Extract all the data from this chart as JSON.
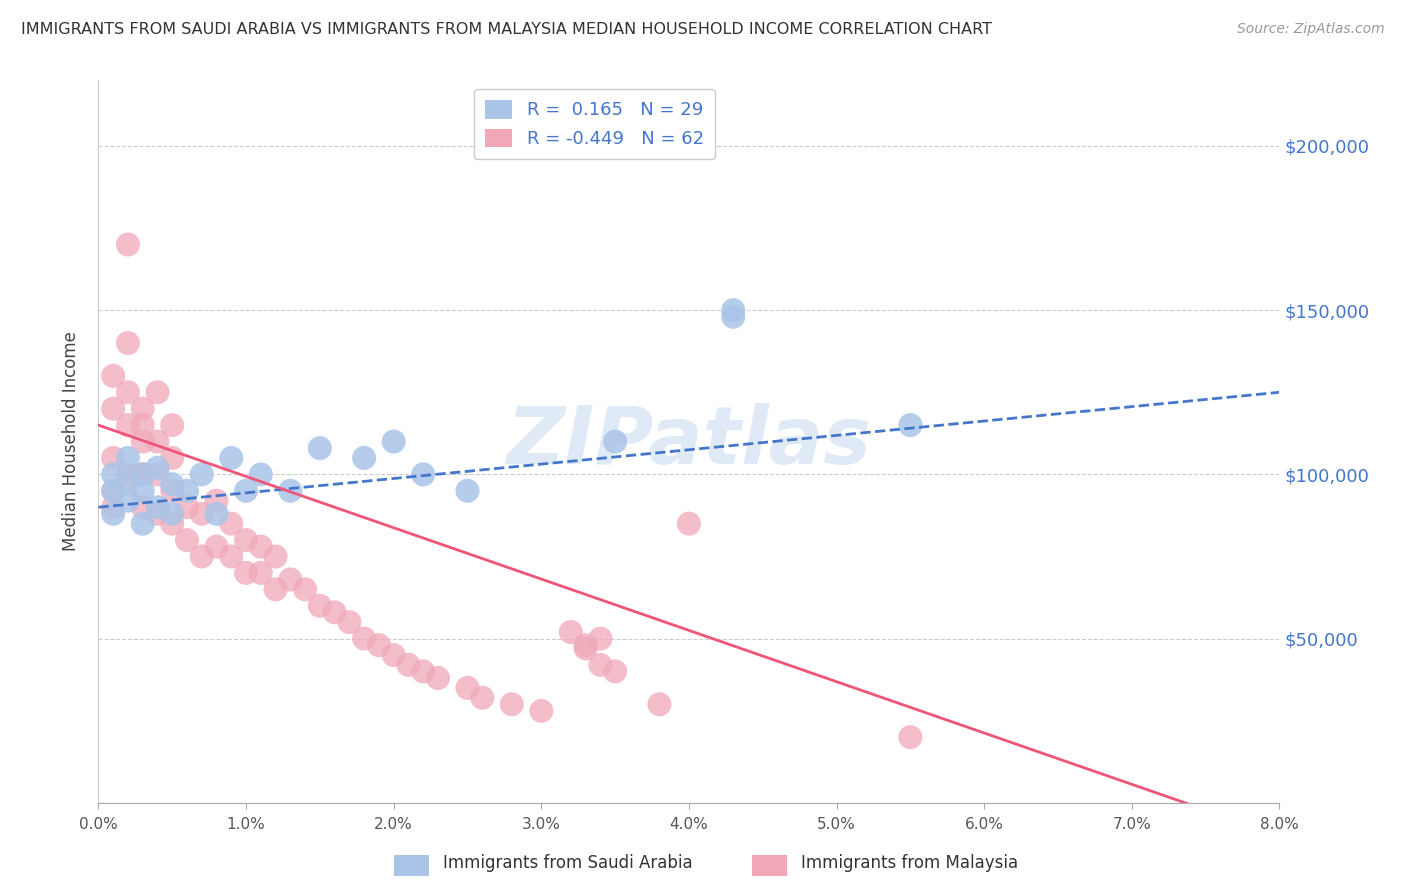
{
  "title": "IMMIGRANTS FROM SAUDI ARABIA VS IMMIGRANTS FROM MALAYSIA MEDIAN HOUSEHOLD INCOME CORRELATION CHART",
  "source": "Source: ZipAtlas.com",
  "ylabel": "Median Household Income",
  "xlim": [
    0.0,
    0.08
  ],
  "ylim": [
    0,
    220000
  ],
  "yticks": [
    0,
    50000,
    100000,
    150000,
    200000
  ],
  "ytick_labels": [
    "",
    "$50,000",
    "$100,000",
    "$150,000",
    "$200,000"
  ],
  "legend_r_saudi": "R =  0.165",
  "legend_n_saudi": "N = 29",
  "legend_r_malaysia": "R = -0.449",
  "legend_n_malaysia": "N = 62",
  "color_saudi": "#aac4e8",
  "color_malaysia": "#f0a8b8",
  "line_color_saudi": "#4477cc",
  "line_color_malaysia": "#ee5577",
  "watermark": "ZIPatlas",
  "saudi_x": [
    0.001,
    0.001,
    0.001,
    0.002,
    0.002,
    0.002,
    0.003,
    0.003,
    0.003,
    0.004,
    0.004,
    0.005,
    0.005,
    0.006,
    0.007,
    0.008,
    0.009,
    0.01,
    0.011,
    0.013,
    0.015,
    0.018,
    0.02,
    0.022,
    0.025,
    0.035,
    0.043,
    0.043,
    0.055
  ],
  "saudi_y": [
    95000,
    100000,
    88000,
    92000,
    98000,
    105000,
    85000,
    95000,
    100000,
    90000,
    102000,
    88000,
    97000,
    95000,
    100000,
    88000,
    105000,
    95000,
    100000,
    95000,
    108000,
    105000,
    110000,
    100000,
    95000,
    110000,
    150000,
    148000,
    115000
  ],
  "malaysia_x": [
    0.001,
    0.001,
    0.001,
    0.001,
    0.001,
    0.002,
    0.002,
    0.002,
    0.002,
    0.002,
    0.003,
    0.003,
    0.003,
    0.003,
    0.003,
    0.003,
    0.004,
    0.004,
    0.004,
    0.004,
    0.005,
    0.005,
    0.005,
    0.005,
    0.006,
    0.006,
    0.007,
    0.007,
    0.008,
    0.008,
    0.009,
    0.009,
    0.01,
    0.01,
    0.011,
    0.011,
    0.012,
    0.012,
    0.013,
    0.014,
    0.015,
    0.016,
    0.017,
    0.018,
    0.019,
    0.02,
    0.021,
    0.022,
    0.023,
    0.025,
    0.026,
    0.028,
    0.03,
    0.032,
    0.033,
    0.033,
    0.034,
    0.034,
    0.035,
    0.038,
    0.04,
    0.055
  ],
  "malaysia_y": [
    90000,
    105000,
    120000,
    130000,
    95000,
    100000,
    115000,
    125000,
    140000,
    170000,
    90000,
    100000,
    110000,
    120000,
    100000,
    115000,
    88000,
    100000,
    110000,
    125000,
    85000,
    95000,
    105000,
    115000,
    80000,
    90000,
    75000,
    88000,
    78000,
    92000,
    75000,
    85000,
    70000,
    80000,
    70000,
    78000,
    65000,
    75000,
    68000,
    65000,
    60000,
    58000,
    55000,
    50000,
    48000,
    45000,
    42000,
    40000,
    38000,
    35000,
    32000,
    30000,
    28000,
    52000,
    48000,
    47000,
    50000,
    42000,
    40000,
    30000,
    85000,
    20000
  ],
  "background_color": "#ffffff",
  "grid_color": "#cccccc"
}
